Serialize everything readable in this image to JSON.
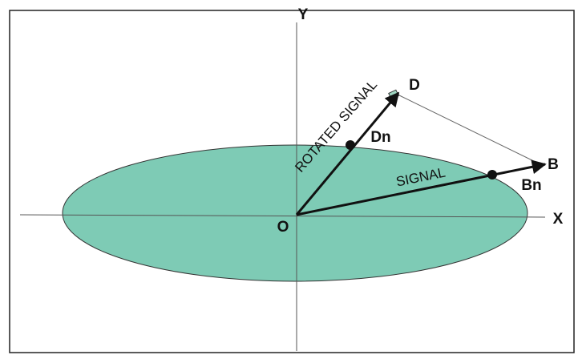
{
  "axes": {
    "x": "X",
    "y": "Y",
    "origin": "O"
  },
  "points": {
    "d": "D",
    "dn": "Dn",
    "b": "B",
    "bn": "Bn"
  },
  "vectors": {
    "rotated": "ROTATED SIGNAL",
    "signal": "SIGNAL"
  }
}
